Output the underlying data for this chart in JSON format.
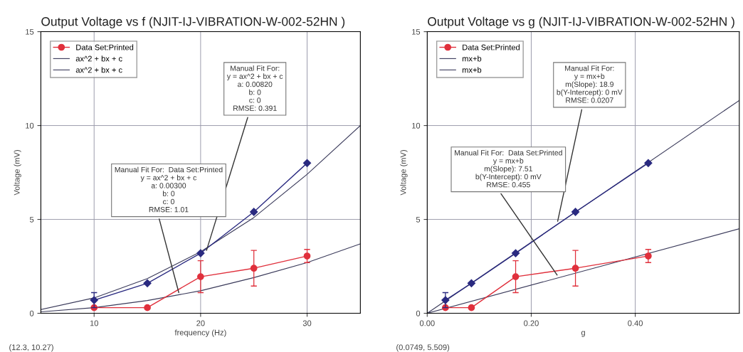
{
  "chart_data": [
    {
      "type": "line",
      "title": "Output Voltage vs f (NJIT-IJ-VIBRATION-W-002-52HN )",
      "xlabel": "frequency (Hz)",
      "ylabel": "Voltage (mV)",
      "xlim": [
        5,
        35
      ],
      "xticks": [
        10,
        20,
        30
      ],
      "ylim": [
        0,
        15
      ],
      "yticks": [
        0,
        5,
        10,
        15
      ],
      "grid": true,
      "legend": "top left",
      "series": [
        {
          "name": "Data Set:Printed",
          "color": "#e0303c",
          "marker": "circle",
          "x": [
            10,
            15,
            20,
            25,
            30
          ],
          "values": [
            0.3,
            0.3,
            1.95,
            2.4,
            3.05
          ],
          "errors": [
            null,
            null,
            0.85,
            0.95,
            0.35
          ]
        },
        {
          "color": "#2a2a80",
          "marker": "diamond",
          "x": [
            10,
            15,
            20,
            25,
            30
          ],
          "values": [
            0.7,
            1.6,
            3.2,
            5.4,
            8.0
          ],
          "errors": [
            0.4,
            null,
            null,
            null,
            null
          ]
        },
        {
          "name": "ax^2 + bx + c",
          "color": "#3a3a5a",
          "marker": "none",
          "x": [
            5,
            10,
            15,
            20,
            25,
            30,
            35
          ],
          "values": [
            0.2,
            0.82,
            1.85,
            3.28,
            5.1,
            7.4,
            10.0
          ]
        },
        {
          "name": "ax^2 + bx + c",
          "color": "#3a3a5a",
          "marker": "none",
          "x": [
            5,
            10,
            15,
            20,
            25,
            30,
            35
          ],
          "values": [
            0.08,
            0.3,
            0.68,
            1.2,
            1.9,
            2.7,
            3.7
          ]
        }
      ],
      "annotations": [
        {
          "text": "Manual Fit For:\ny = ax^2 + bx + c\na: 0.00820\nb: 0\nc: 0\nRMSE: 0.391",
          "x": 20.5,
          "y": 3.25
        },
        {
          "text": "Manual Fit For:  Data Set:Printed\ny = ax^2 + bx + c\na: 0.00300\nb: 0\nc: 0\nRMSE: 1.01",
          "x": 18,
          "y": 1.0
        },
        "(12.3, 10.27)"
      ]
    },
    {
      "type": "line",
      "title": "Output Voltage vs g (NJIT-IJ-VIBRATION-W-002-52HN )",
      "xlabel": "g",
      "ylabel": "Voltage (mV)",
      "xlim": [
        0,
        0.6
      ],
      "xticks": [
        {
          "value": 0,
          "label": "0.00"
        },
        {
          "value": 0.2,
          "label": "0.20"
        },
        {
          "value": 0.4,
          "label": "0.40"
        }
      ],
      "ylim": [
        0,
        15
      ],
      "yticks": [
        0,
        5,
        10,
        15
      ],
      "grid": true,
      "legend": "top left",
      "series": [
        {
          "name": "Data Set:Printed",
          "color": "#e0303c",
          "marker": "circle",
          "x": [
            0.035,
            0.085,
            0.17,
            0.285,
            0.425
          ],
          "values": [
            0.3,
            0.3,
            1.95,
            2.4,
            3.05
          ],
          "errors": [
            null,
            null,
            0.85,
            0.95,
            0.35
          ]
        },
        {
          "color": "#2a2a80",
          "marker": "diamond",
          "x": [
            0.035,
            0.085,
            0.17,
            0.285,
            0.425
          ],
          "values": [
            0.7,
            1.6,
            3.2,
            5.4,
            8.0
          ],
          "errors": [
            0.4,
            null,
            null,
            null,
            null
          ]
        },
        {
          "name": "mx+b",
          "color": "#3a3a5a",
          "marker": "none",
          "x": [
            0,
            0.6
          ],
          "values": [
            0,
            11.34
          ]
        },
        {
          "name": "mx+b",
          "color": "#3a3a5a",
          "marker": "none",
          "x": [
            0,
            0.6
          ],
          "values": [
            0,
            4.5
          ]
        }
      ],
      "annotations": [
        {
          "text": "Manual Fit For:\ny = mx+b\nm(Slope): 18.9\nb(Y-Intercept): 0 mV\nRMSE: 0.0207",
          "x": 0.25,
          "y": 4.8
        },
        {
          "text": "Manual Fit For:  Data Set:Printed\ny = mx+b\nm(Slope): 7.51\nb(Y-Intercept): 0 mV\nRMSE: 0.455",
          "x": 0.252,
          "y": 1.95
        },
        "(0.0749, 5.509)"
      ]
    }
  ]
}
